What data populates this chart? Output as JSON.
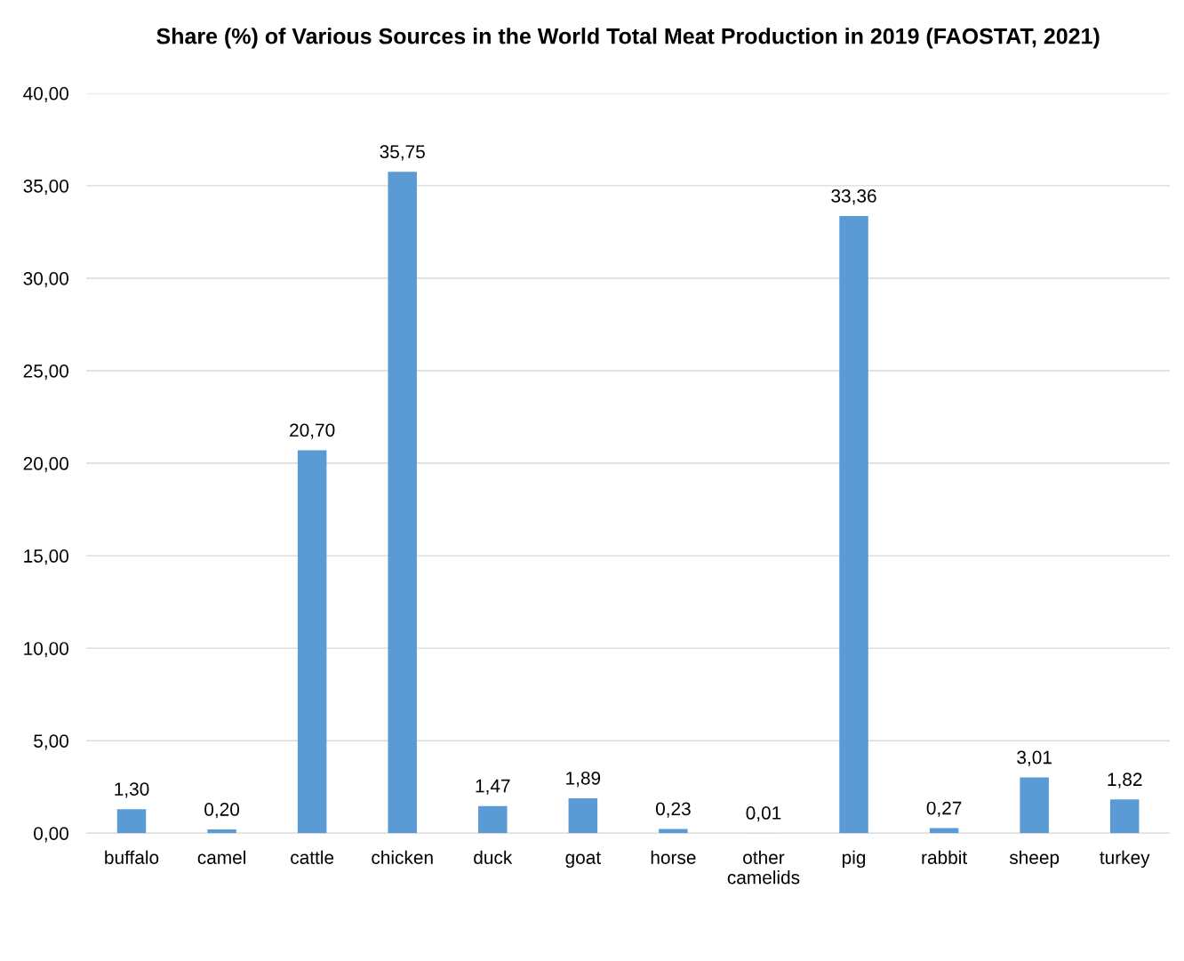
{
  "chart_data": {
    "type": "bar",
    "title": "Share (%) of Various Sources in the World Total Meat Production in 2019 (FAOSTAT, 2021)",
    "categories": [
      "buffalo",
      "camel",
      "cattle",
      "chicken",
      "duck",
      "goat",
      "horse",
      "other\ncamelids",
      "pig",
      "rabbit",
      "sheep",
      "turkey"
    ],
    "values": [
      1.3,
      0.2,
      20.7,
      35.75,
      1.47,
      1.89,
      0.23,
      0.01,
      33.36,
      0.27,
      3.01,
      1.82
    ],
    "value_labels": [
      "1,30",
      "0,20",
      "20,70",
      "35,75",
      "1,47",
      "1,89",
      "0,23",
      "0,01",
      "33,36",
      "0,27",
      "3,01",
      "1,82"
    ],
    "color": "#5b9bd5",
    "ylim": [
      0,
      40
    ],
    "yticks": [
      {
        "value": 0,
        "label": "0,00"
      },
      {
        "value": 5,
        "label": "5,00"
      },
      {
        "value": 10,
        "label": "10,00"
      },
      {
        "value": 15,
        "label": "15,00"
      },
      {
        "value": 20,
        "label": "20,00"
      },
      {
        "value": 25,
        "label": "25,00"
      },
      {
        "value": 30,
        "label": "30,00"
      },
      {
        "value": 35,
        "label": "35,00"
      },
      {
        "value": 40,
        "label": "40,00"
      }
    ],
    "grid": "y"
  }
}
